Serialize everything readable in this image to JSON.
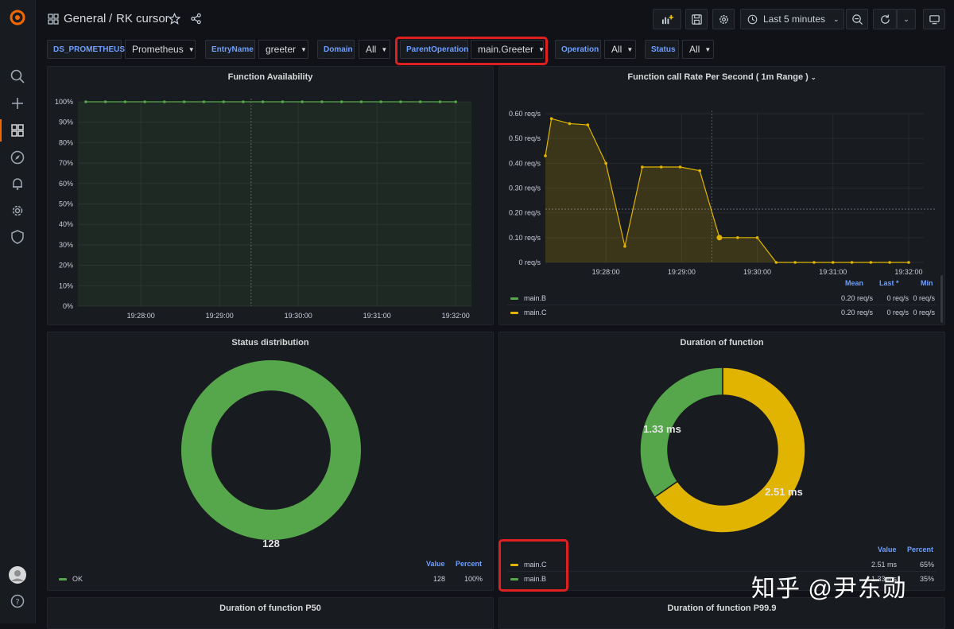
{
  "breadcrumb": {
    "folder": "General",
    "separator": "/",
    "dashboard": "RK cursor"
  },
  "toolbar": {
    "time_range": "Last 5 minutes"
  },
  "variables": [
    {
      "label": "DS_PROMETHEUS",
      "value": "Prometheus"
    },
    {
      "label": "EntryName",
      "value": "greeter"
    },
    {
      "label": "Domain",
      "value": "All"
    },
    {
      "label": "ParentOperation",
      "value": "main.Greeter"
    },
    {
      "label": "Operation",
      "value": "All"
    },
    {
      "label": "Status",
      "value": "All"
    }
  ],
  "colors": {
    "green": "#56a64b",
    "yellow": "#e0b400",
    "blue": "#6e9fff",
    "highlight": "#e02020"
  },
  "panels": {
    "availability": {
      "title": "Function Availability",
      "chart_data": {
        "type": "line",
        "title": "Function Availability",
        "y_ticks": [
          "100%",
          "90%",
          "80%",
          "70%",
          "60%",
          "50%",
          "40%",
          "30%",
          "20%",
          "10%",
          "0%"
        ],
        "x_ticks": [
          "19:28:00",
          "19:29:00",
          "19:30:00",
          "19:31:00",
          "19:32:00"
        ],
        "ylim": [
          0,
          100
        ],
        "xlim_minutes": [
          27.2,
          32.2
        ],
        "series": [
          {
            "name": "",
            "color": "#56a64b",
            "x": [
              27.3,
              27.55,
              27.8,
              28.05,
              28.3,
              28.55,
              28.8,
              29.05,
              29.3,
              29.55,
              29.8,
              30.05,
              30.3,
              30.55,
              30.8,
              31.05,
              31.3,
              31.55,
              31.8,
              32.0
            ],
            "values": [
              100,
              100,
              100,
              100,
              100,
              100,
              100,
              100,
              100,
              100,
              100,
              100,
              100,
              100,
              100,
              100,
              100,
              100,
              100,
              100
            ]
          }
        ]
      }
    },
    "call_rate": {
      "title": "Function call Rate Per Second ( 1m Range )",
      "chart_data": {
        "type": "area",
        "title": "Function call Rate Per Second ( 1m Range )",
        "y_ticks": [
          "0.60 req/s",
          "0.50 req/s",
          "0.40 req/s",
          "0.30 req/s",
          "0.20 req/s",
          "0.10 req/s",
          "0 req/s"
        ],
        "x_ticks": [
          "19:28:00",
          "19:29:00",
          "19:30:00",
          "19:31:00",
          "19:32:00"
        ],
        "ylim": [
          0,
          0.6
        ],
        "xlim_minutes": [
          27.2,
          32.2
        ],
        "series": [
          {
            "name": "main.B",
            "color": "#56a64b",
            "x": [],
            "values": []
          },
          {
            "name": "main.C",
            "color": "#e0b400",
            "x": [
              27.2,
              27.28,
              27.52,
              27.76,
              28.0,
              28.25,
              28.48,
              28.73,
              28.98,
              29.24,
              29.5,
              29.74,
              30.0,
              30.25,
              30.5,
              30.75,
              31.0,
              31.25,
              31.5,
              31.75,
              32.0
            ],
            "values": [
              0.43,
              0.58,
              0.56,
              0.555,
              0.4,
              0.065,
              0.385,
              0.385,
              0.385,
              0.37,
              0.1,
              0.1,
              0.1,
              0,
              0,
              0,
              0,
              0,
              0,
              0,
              0
            ]
          }
        ]
      },
      "legend": {
        "headers": [
          "Mean",
          "Last *",
          "Min"
        ],
        "rows": [
          {
            "name": "main.B",
            "mean": "0.20 req/s",
            "last": "0 req/s",
            "min": "0 req/s"
          },
          {
            "name": "main.C",
            "mean": "0.20 req/s",
            "last": "0 req/s",
            "min": "0 req/s"
          }
        ]
      }
    },
    "status_distribution": {
      "title": "Status distribution",
      "chart_data": {
        "type": "pie",
        "title": "Status distribution",
        "slices": [
          {
            "name": "OK",
            "value": 128,
            "label": "128",
            "percent": "100%",
            "color": "#56a64b"
          }
        ]
      },
      "legend": {
        "headers": [
          "Value",
          "Percent"
        ],
        "rows": [
          {
            "name": "OK",
            "value": "128",
            "percent": "100%"
          }
        ]
      }
    },
    "duration": {
      "title": "Duration of function",
      "chart_data": {
        "type": "pie",
        "title": "Duration of function",
        "slices": [
          {
            "name": "main.C",
            "value": 2.51,
            "label": "2.51 ms",
            "percent": "65%",
            "color": "#e0b400"
          },
          {
            "name": "main.B",
            "value": 1.33,
            "label": "1.33 ms",
            "percent": "35%",
            "color": "#56a64b"
          }
        ]
      },
      "legend": {
        "headers": [
          "Value",
          "Percent"
        ],
        "rows": [
          {
            "name": "main.C",
            "value": "2.51 ms",
            "percent": "65%"
          },
          {
            "name": "main.B",
            "value": "1.33 ms",
            "percent": "35%"
          }
        ]
      }
    },
    "p50": {
      "title": "Duration of function P50"
    },
    "p999": {
      "title": "Duration of function P99.9"
    }
  },
  "watermark": "知乎 @尹东勋"
}
